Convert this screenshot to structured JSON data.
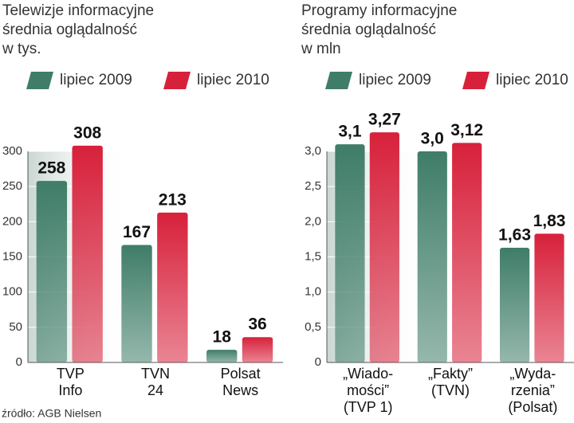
{
  "chart_data": [
    {
      "type": "bar",
      "title": [
        "Telewizje informacyjne",
        "średnia oglądalność",
        "w tys."
      ],
      "categories": [
        [
          "TVP",
          "Info"
        ],
        [
          "TVN",
          "24"
        ],
        [
          "Polsat",
          "News"
        ]
      ],
      "series": [
        {
          "name": "lipiec 2009",
          "color": "#3f7d68",
          "values": [
            258,
            167,
            18
          ]
        },
        {
          "name": "lipiec 2010",
          "color": "#d7213b",
          "values": [
            308,
            213,
            36
          ]
        }
      ],
      "ylim": [
        0,
        300
      ],
      "yticks": [
        0,
        50,
        100,
        150,
        200,
        250,
        300
      ]
    },
    {
      "type": "bar",
      "title": [
        "Programy informacyjne",
        "średnia oglądalność",
        "w mln"
      ],
      "categories": [
        [
          "„Wiado-",
          "mości”",
          "(TVP 1)"
        ],
        [
          "„Fakty”",
          "(TVN)"
        ],
        [
          "„Wyda-",
          "rzenia”",
          "(Polsat)"
        ]
      ],
      "series": [
        {
          "name": "lipiec 2009",
          "color": "#3f7d68",
          "values": [
            3.1,
            3.0,
            1.63
          ],
          "value_labels": [
            "3,1",
            "3,0",
            "1,63"
          ]
        },
        {
          "name": "lipiec 2010",
          "color": "#d7213b",
          "values": [
            3.27,
            3.12,
            1.83
          ],
          "value_labels": [
            "3,27",
            "3,12",
            "1,83"
          ]
        }
      ],
      "ylim": [
        0,
        3.0
      ],
      "yticks": [
        0,
        {
          "value": 0.5,
          "label": "0,5"
        },
        {
          "value": 1.0,
          "label": "1,0"
        },
        {
          "value": 1.5,
          "label": "1,5"
        },
        {
          "value": 2.0,
          "label": "2,0"
        },
        {
          "value": 2.5,
          "label": "2,5"
        },
        {
          "value": 3.0,
          "label": "3,0"
        }
      ]
    }
  ],
  "source": "źródło: AGB Nielsen"
}
